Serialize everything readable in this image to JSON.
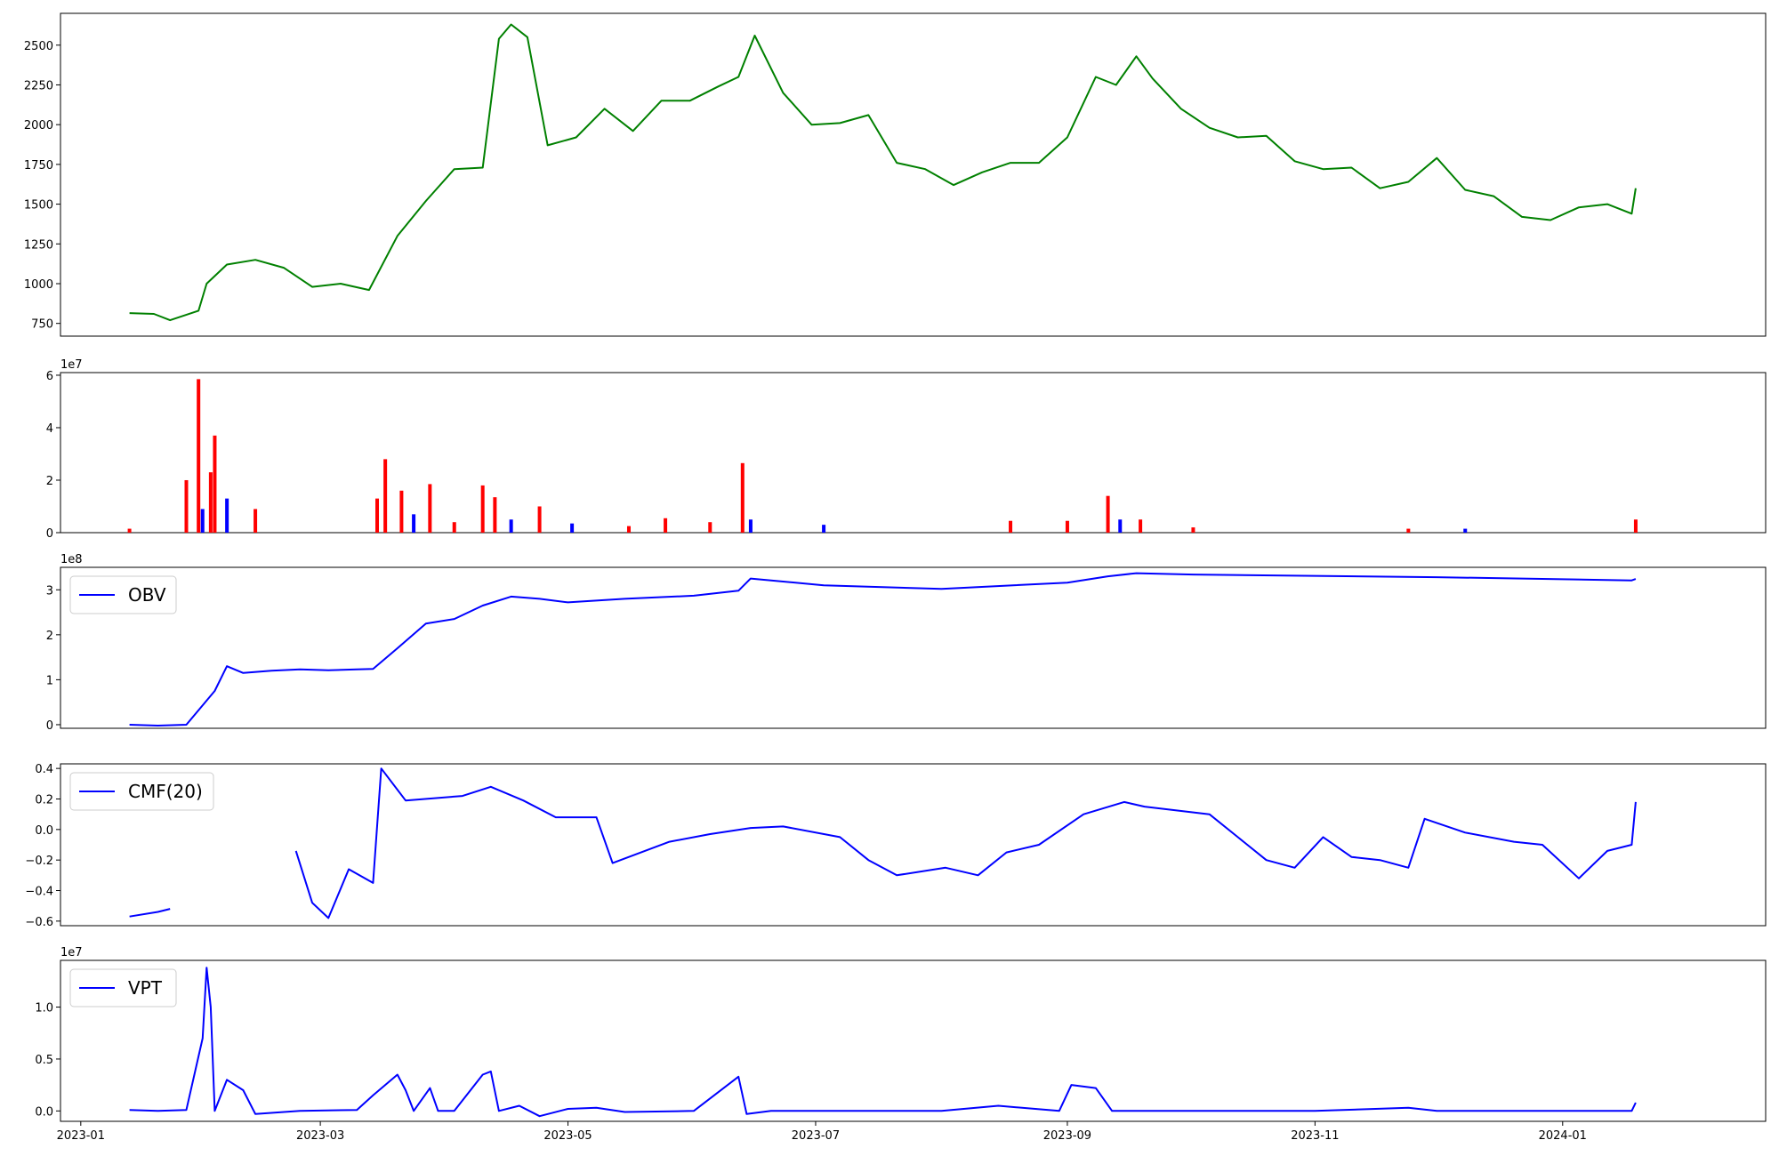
{
  "chart_data": [
    {
      "type": "line",
      "name": "price-panel",
      "color": "#008000",
      "ylim": [
        670,
        2700
      ],
      "yticks": [
        750,
        1000,
        1250,
        1500,
        1750,
        2000,
        2250,
        2500
      ],
      "scale_label": "",
      "legend": "",
      "x": [
        "2023-01-13",
        "2023-01-19",
        "2023-01-23",
        "2023-01-30",
        "2023-02-01",
        "2023-02-06",
        "2023-02-13",
        "2023-02-20",
        "2023-02-27",
        "2023-03-06",
        "2023-03-13",
        "2023-03-20",
        "2023-03-27",
        "2023-04-03",
        "2023-04-10",
        "2023-04-14",
        "2023-04-17",
        "2023-04-21",
        "2023-04-26",
        "2023-05-03",
        "2023-05-10",
        "2023-05-17",
        "2023-05-24",
        "2023-05-31",
        "2023-06-07",
        "2023-06-12",
        "2023-06-16",
        "2023-06-23",
        "2023-06-30",
        "2023-07-07",
        "2023-07-14",
        "2023-07-21",
        "2023-07-28",
        "2023-08-04",
        "2023-08-11",
        "2023-08-18",
        "2023-08-25",
        "2023-09-01",
        "2023-09-08",
        "2023-09-13",
        "2023-09-18",
        "2023-09-22",
        "2023-09-29",
        "2023-10-06",
        "2023-10-13",
        "2023-10-20",
        "2023-10-27",
        "2023-11-03",
        "2023-11-10",
        "2023-11-17",
        "2023-11-24",
        "2023-12-01",
        "2023-12-08",
        "2023-12-15",
        "2023-12-22",
        "2023-12-29",
        "2024-01-05",
        "2024-01-12",
        "2024-01-18",
        "2024-01-19"
      ],
      "values": [
        815,
        810,
        770,
        830,
        1000,
        1120,
        1150,
        1100,
        980,
        1000,
        960,
        1300,
        1520,
        1720,
        1730,
        2540,
        2630,
        2550,
        1870,
        1920,
        2100,
        1960,
        2150,
        2150,
        2240,
        2300,
        2560,
        2200,
        2000,
        2010,
        2060,
        1760,
        1720,
        1620,
        1700,
        1760,
        1760,
        1920,
        2300,
        2250,
        2430,
        2290,
        2100,
        1980,
        1920,
        1930,
        1770,
        1720,
        1730,
        1600,
        1640,
        1790,
        1590,
        1550,
        1420,
        1400,
        1480,
        1500,
        1440,
        1600
      ]
    },
    {
      "type": "bar",
      "name": "volume-panel",
      "ylim": [
        0,
        61000000
      ],
      "yticks": [
        0,
        20000000,
        40000000,
        60000000
      ],
      "ytick_labels": [
        "0",
        "2",
        "4",
        "6"
      ],
      "scale_label": "1e7",
      "legend": "",
      "colors": {
        "up": "#ff0000",
        "down": "#0000ff"
      },
      "x": [
        "2023-01-13",
        "2023-01-27",
        "2023-01-30",
        "2023-01-31",
        "2023-02-02",
        "2023-02-03",
        "2023-02-06",
        "2023-02-13",
        "2023-03-15",
        "2023-03-17",
        "2023-03-21",
        "2023-03-24",
        "2023-03-28",
        "2023-04-03",
        "2023-04-10",
        "2023-04-13",
        "2023-04-17",
        "2023-04-24",
        "2023-05-02",
        "2023-05-16",
        "2023-05-25",
        "2023-06-05",
        "2023-06-13",
        "2023-06-15",
        "2023-07-03",
        "2023-08-18",
        "2023-09-01",
        "2023-09-11",
        "2023-09-14",
        "2023-09-19",
        "2023-10-02",
        "2023-11-24",
        "2023-12-08",
        "2024-01-19"
      ],
      "values": [
        1500000,
        20000000,
        58500000,
        9000000,
        23000000,
        37000000,
        13000000,
        9000000,
        13000000,
        28000000,
        16000000,
        7000000,
        18500000,
        4000000,
        18000000,
        13500000,
        5000000,
        10000000,
        3500000,
        2500000,
        5500000,
        4000000,
        26500000,
        5000000,
        3000000,
        4500000,
        4500000,
        14000000,
        5000000,
        5000000,
        2000000,
        1500000,
        1500000,
        5000000
      ],
      "directions": [
        "up",
        "up",
        "up",
        "down",
        "up",
        "up",
        "down",
        "up",
        "up",
        "up",
        "up",
        "down",
        "up",
        "up",
        "up",
        "up",
        "down",
        "up",
        "down",
        "up",
        "up",
        "up",
        "up",
        "down",
        "down",
        "up",
        "up",
        "up",
        "down",
        "up",
        "up",
        "up",
        "down",
        "up"
      ]
    },
    {
      "type": "line",
      "name": "obv-panel",
      "color": "#0000ff",
      "ylim": [
        -8000000,
        350000000
      ],
      "yticks": [
        0,
        100000000,
        200000000,
        300000000
      ],
      "ytick_labels": [
        "0",
        "1",
        "2",
        "3"
      ],
      "scale_label": "1e8",
      "legend": "OBV",
      "x": [
        "2023-01-13",
        "2023-01-20",
        "2023-01-27",
        "2023-02-03",
        "2023-02-06",
        "2023-02-10",
        "2023-02-17",
        "2023-02-24",
        "2023-03-03",
        "2023-03-10",
        "2023-03-14",
        "2023-03-20",
        "2023-03-27",
        "2023-04-03",
        "2023-04-10",
        "2023-04-17",
        "2023-04-24",
        "2023-05-01",
        "2023-05-15",
        "2023-06-01",
        "2023-06-12",
        "2023-06-15",
        "2023-07-03",
        "2023-08-01",
        "2023-09-01",
        "2023-09-11",
        "2023-09-18",
        "2023-10-02",
        "2023-11-01",
        "2023-12-01",
        "2024-01-18",
        "2024-01-19"
      ],
      "values": [
        0,
        -2000000,
        0,
        75000000,
        130000000,
        115000000,
        120000000,
        123000000,
        121000000,
        123000000,
        124000000,
        170000000,
        225000000,
        235000000,
        265000000,
        285000000,
        280000000,
        272000000,
        280000000,
        287000000,
        298000000,
        325000000,
        310000000,
        302000000,
        316000000,
        330000000,
        337000000,
        334000000,
        331000000,
        328000000,
        321000000,
        324000000
      ]
    },
    {
      "type": "line",
      "name": "cmf-panel",
      "color": "#0000ff",
      "ylim": [
        -0.63,
        0.43
      ],
      "yticks": [
        -0.6,
        -0.4,
        -0.2,
        0.0,
        0.2,
        0.4
      ],
      "ytick_labels": [
        "−0.6",
        "−0.4",
        "−0.2",
        "0.0",
        "0.2",
        "0.4"
      ],
      "scale_label": "",
      "legend": "CMF(20)",
      "segments": [
        {
          "x": [
            "2023-01-13",
            "2023-01-20",
            "2023-01-23"
          ],
          "values": [
            -0.57,
            -0.54,
            -0.52
          ]
        },
        {
          "x": [
            "2023-02-23",
            "2023-02-27",
            "2023-03-03",
            "2023-03-08",
            "2023-03-14",
            "2023-03-16",
            "2023-03-22",
            "2023-04-05",
            "2023-04-12",
            "2023-04-20",
            "2023-04-28",
            "2023-05-08",
            "2023-05-12",
            "2023-05-26",
            "2023-06-05",
            "2023-06-15",
            "2023-06-23",
            "2023-07-07",
            "2023-07-14",
            "2023-07-21",
            "2023-08-02",
            "2023-08-10",
            "2023-08-17",
            "2023-08-25",
            "2023-09-05",
            "2023-09-15",
            "2023-09-20",
            "2023-10-06",
            "2023-10-13",
            "2023-10-20",
            "2023-10-27",
            "2023-11-03",
            "2023-11-10",
            "2023-11-17",
            "2023-11-24",
            "2023-11-28",
            "2023-12-08",
            "2023-12-20",
            "2023-12-27",
            "2024-01-05",
            "2024-01-12",
            "2024-01-18",
            "2024-01-19"
          ],
          "values": [
            -0.14,
            -0.48,
            -0.58,
            -0.26,
            -0.35,
            0.4,
            0.19,
            0.22,
            0.28,
            0.19,
            0.08,
            0.08,
            -0.22,
            -0.08,
            -0.03,
            0.01,
            0.02,
            -0.05,
            -0.2,
            -0.3,
            -0.25,
            -0.3,
            -0.15,
            -0.1,
            0.1,
            0.18,
            0.15,
            0.1,
            -0.05,
            -0.2,
            -0.25,
            -0.05,
            -0.18,
            -0.2,
            -0.25,
            0.07,
            -0.02,
            -0.08,
            -0.1,
            -0.32,
            -0.14,
            -0.1,
            0.18
          ]
        }
      ]
    },
    {
      "type": "line",
      "name": "vpt-panel",
      "color": "#0000ff",
      "ylim": [
        -1000000,
        14500000
      ],
      "yticks": [
        0,
        5000000,
        10000000
      ],
      "ytick_labels": [
        "0.0",
        "0.5",
        "1.0"
      ],
      "scale_label": "1e7",
      "legend": "VPT",
      "x": [
        "2023-01-13",
        "2023-01-20",
        "2023-01-27",
        "2023-01-31",
        "2023-02-01",
        "2023-02-02",
        "2023-02-03",
        "2023-02-06",
        "2023-02-10",
        "2023-02-13",
        "2023-02-24",
        "2023-03-10",
        "2023-03-14",
        "2023-03-20",
        "2023-03-22",
        "2023-03-24",
        "2023-03-28",
        "2023-03-30",
        "2023-04-03",
        "2023-04-10",
        "2023-04-12",
        "2023-04-14",
        "2023-04-19",
        "2023-04-24",
        "2023-05-01",
        "2023-05-08",
        "2023-05-15",
        "2023-06-01",
        "2023-06-12",
        "2023-06-14",
        "2023-06-20",
        "2023-07-03",
        "2023-08-01",
        "2023-08-15",
        "2023-08-30",
        "2023-09-02",
        "2023-09-08",
        "2023-09-12",
        "2023-09-20",
        "2023-10-02",
        "2023-11-01",
        "2023-11-24",
        "2023-12-01",
        "2024-01-18",
        "2024-01-19"
      ],
      "values": [
        100000,
        0,
        100000,
        7000000,
        13800000,
        10000000,
        0,
        3000000,
        2000000,
        -300000,
        0,
        100000,
        1500000,
        3500000,
        2000000,
        0,
        2200000,
        0,
        0,
        3500000,
        3800000,
        0,
        500000,
        -500000,
        200000,
        300000,
        -100000,
        0,
        3300000,
        -300000,
        0,
        0,
        0,
        500000,
        0,
        2500000,
        2200000,
        0,
        0,
        0,
        0,
        300000,
        0,
        0,
        800000
      ]
    }
  ],
  "x_axis": {
    "tick_dates": [
      "2023-01-01",
      "2023-03-01",
      "2023-05-01",
      "2023-07-01",
      "2023-09-01",
      "2023-11-01",
      "2024-01-01"
    ],
    "tick_labels": [
      "2023-01",
      "2023-03",
      "2023-05",
      "2023-07",
      "2023-09",
      "2023-11",
      "2024-01"
    ],
    "xlim": [
      "2022-12-27",
      "2024-02-20"
    ]
  }
}
